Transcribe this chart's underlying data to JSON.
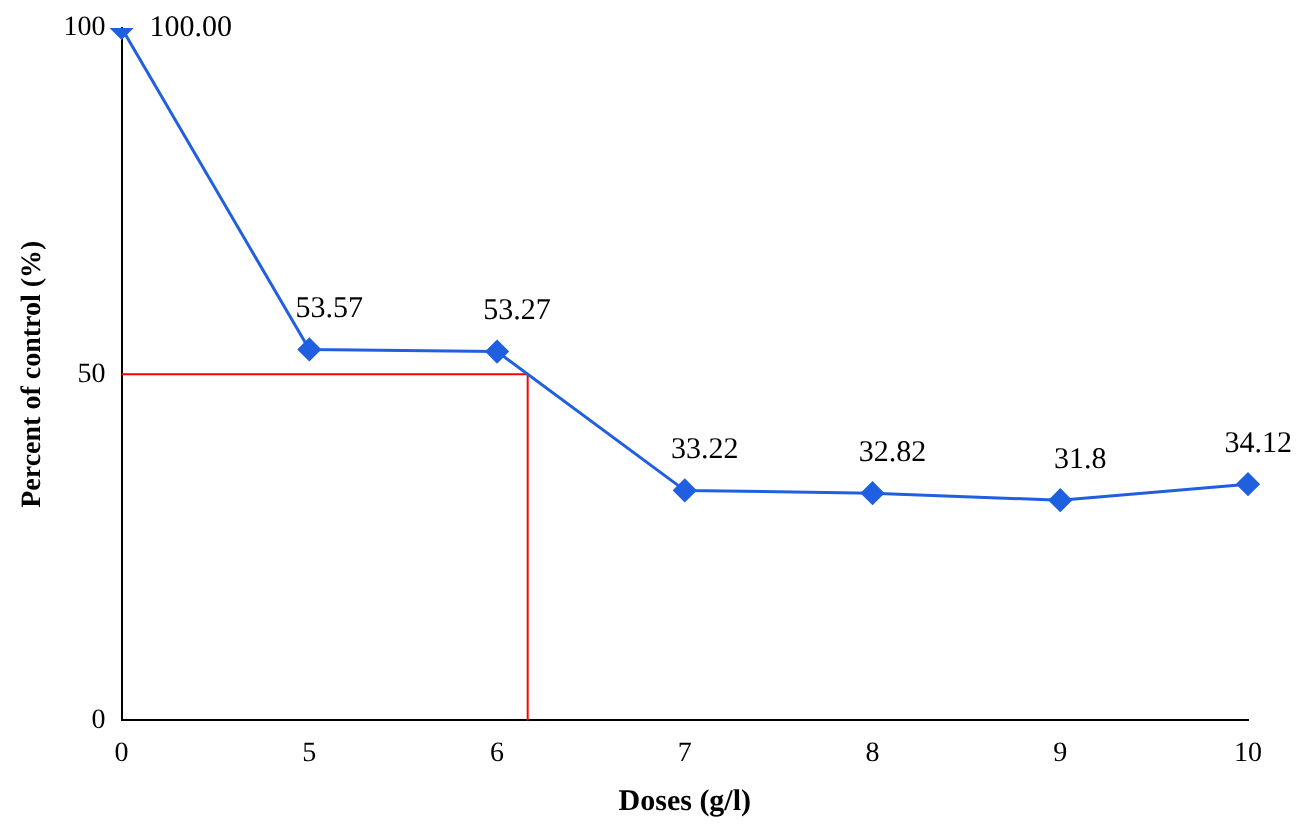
{
  "chart_data": {
    "type": "line",
    "xlabel": "Doses (g/l)",
    "ylabel": "Percent of control (%)",
    "categories": [
      "0",
      "5",
      "6",
      "7",
      "8",
      "9",
      "10"
    ],
    "series": [
      {
        "color": "#1f5fe0",
        "values": [
          100,
          53.57,
          53.27,
          33.22,
          32.82,
          31.8,
          34.12
        ],
        "value_labels": [
          "100.00",
          "53.57",
          "53.27",
          "33.22",
          "32.82",
          "31.8",
          "34.12"
        ]
      }
    ],
    "ylim": [
      0,
      100
    ],
    "yticks": [
      0,
      50,
      100
    ],
    "grid": false,
    "legend": false,
    "marker": "diamond",
    "line_style": "solid",
    "ref_lines": [
      {
        "axis": "y",
        "value": 50,
        "color": "#ff0000"
      }
    ]
  }
}
